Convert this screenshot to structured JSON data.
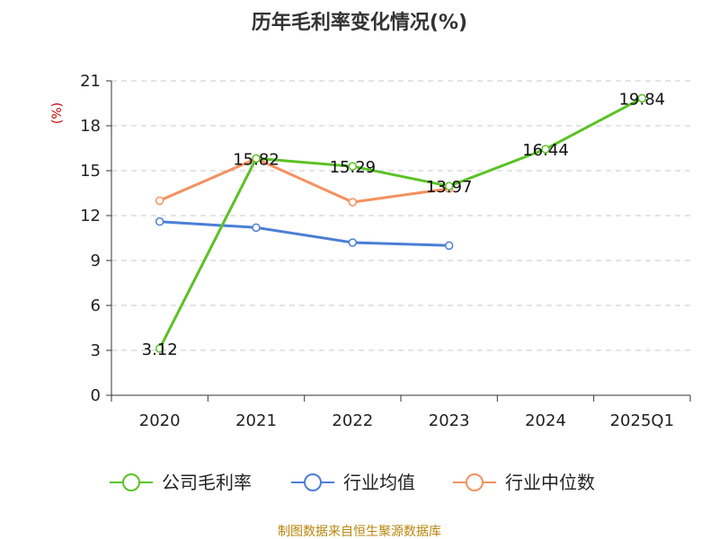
{
  "chart_data": {
    "type": "line",
    "title": "历年毛利率变化情况(%)",
    "ylabel": "(%)",
    "categories": [
      "2020",
      "2021",
      "2022",
      "2023",
      "2024",
      "2025Q1"
    ],
    "ylim": [
      0,
      21
    ],
    "yticks": [
      0,
      3,
      6,
      9,
      12,
      15,
      18,
      21
    ],
    "grid": true,
    "legend_position": "bottom",
    "series": [
      {
        "name": "公司毛利率",
        "color": "#5bc225",
        "values": [
          3.12,
          15.82,
          15.29,
          13.97,
          16.44,
          19.84
        ],
        "labels": [
          "3.12",
          "15.82",
          "15.29",
          "13.97",
          "16.44",
          "19.84"
        ]
      },
      {
        "name": "行业均值",
        "color": "#4a7fd6",
        "values": [
          11.6,
          11.2,
          10.2,
          10.0,
          null,
          null
        ]
      },
      {
        "name": "行业中位数",
        "color": "#f4915e",
        "values": [
          13.0,
          15.8,
          12.9,
          13.8,
          null,
          null
        ]
      }
    ],
    "source": "制图数据来自恒生聚源数据库"
  }
}
